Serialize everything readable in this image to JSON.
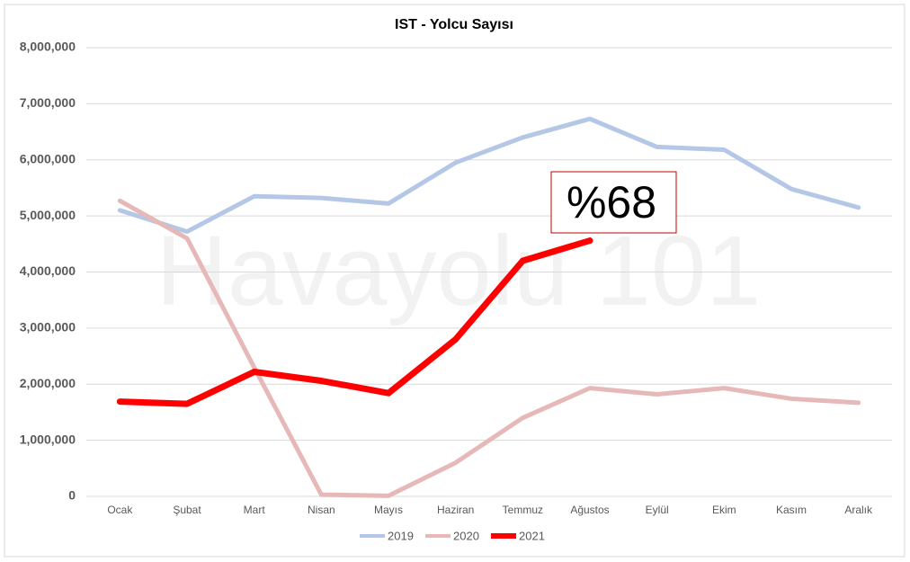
{
  "chart_data": {
    "type": "line",
    "title": "IST - Yolcu Sayısı",
    "categories": [
      "Ocak",
      "Şubat",
      "Mart",
      "Nisan",
      "Mayıs",
      "Haziran",
      "Temmuz",
      "Ağustos",
      "Eylül",
      "Ekim",
      "Kasım",
      "Aralık"
    ],
    "series": [
      {
        "name": "2019",
        "color": "#b4c7e7",
        "values": [
          5100000,
          4720000,
          5350000,
          5320000,
          5220000,
          5950000,
          6400000,
          6730000,
          6230000,
          6180000,
          5480000,
          5150000
        ]
      },
      {
        "name": "2020",
        "color": "#e6b9b8",
        "values": [
          5270000,
          4600000,
          2300000,
          30000,
          10000,
          600000,
          1400000,
          1930000,
          1820000,
          1930000,
          1740000,
          1670000
        ]
      },
      {
        "name": "2021",
        "color": "#ff0000",
        "values": [
          1690000,
          1650000,
          2220000,
          2060000,
          1840000,
          2800000,
          4200000,
          4560000,
          null,
          null,
          null,
          null
        ]
      }
    ],
    "ylim": [
      0,
      8000000
    ],
    "yticks": [
      0,
      {
        "value": 1000000,
        "label": "1,000,000"
      },
      {
        "value": 2000000,
        "label": "2,000,000"
      },
      {
        "value": 3000000,
        "label": "3,000,000"
      },
      {
        "value": 4000000,
        "label": "4,000,000"
      },
      {
        "value": 5000000,
        "label": "5,000,000"
      },
      {
        "value": 6000000,
        "label": "6,000,000"
      },
      {
        "value": 7000000,
        "label": "7,000,000"
      },
      {
        "value": 8000000,
        "label": "8,000,000"
      }
    ],
    "grid": true,
    "legend": "bottom",
    "annotation": "%68",
    "watermark": "Havayolu 101"
  }
}
